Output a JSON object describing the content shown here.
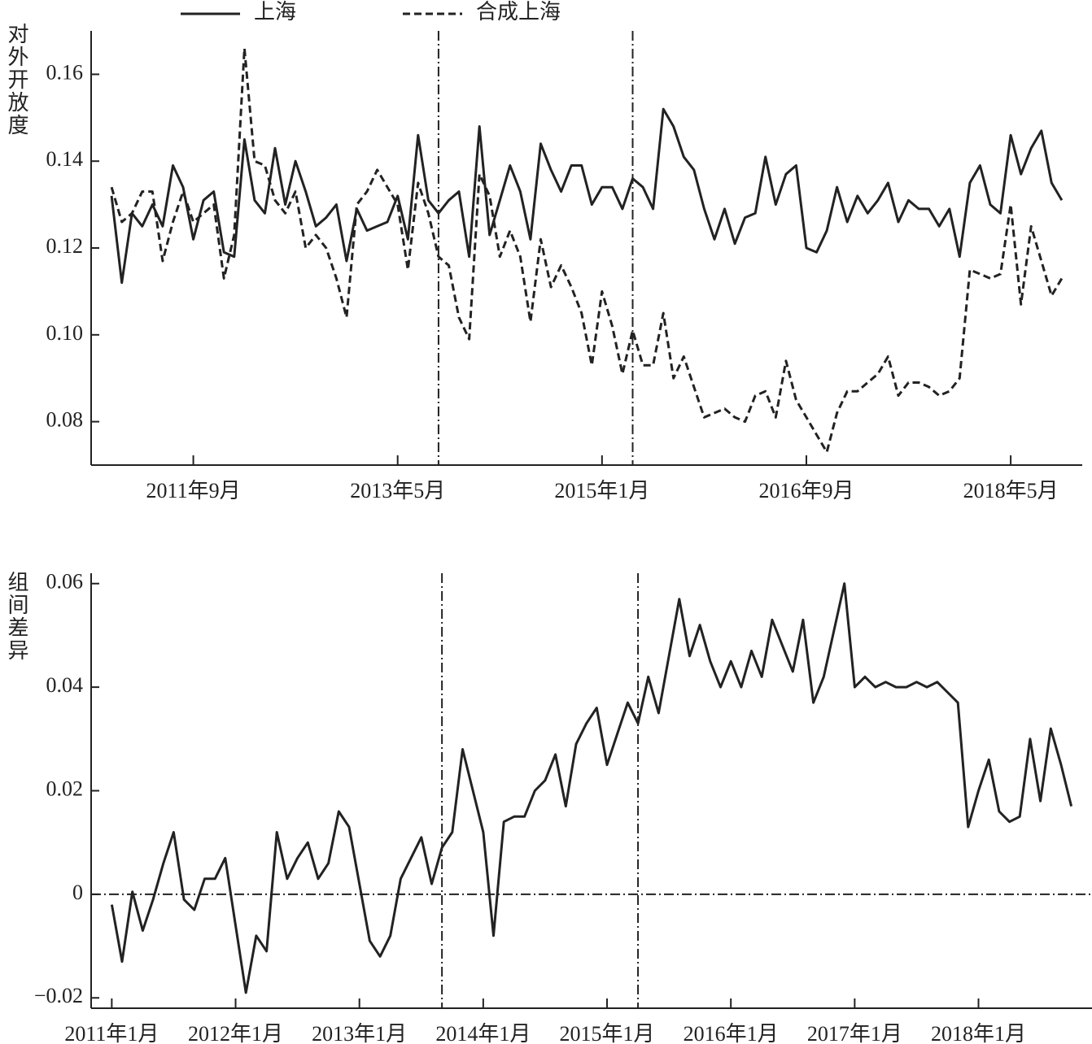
{
  "chart_data": [
    {
      "type": "line",
      "ylabel": "对外开放度",
      "legend": "top",
      "x": [
        "2011-01",
        "2011-02",
        "2011-03",
        "2011-04",
        "2011-05",
        "2011-06",
        "2011-07",
        "2011-08",
        "2011-09",
        "2011-10",
        "2011-11",
        "2011-12",
        "2012-01",
        "2012-02",
        "2012-03",
        "2012-04",
        "2012-05",
        "2012-06",
        "2012-07",
        "2012-08",
        "2012-09",
        "2012-10",
        "2012-11",
        "2012-12",
        "2013-01",
        "2013-02",
        "2013-03",
        "2013-04",
        "2013-05",
        "2013-06",
        "2013-07",
        "2013-08",
        "2013-09",
        "2013-10",
        "2013-11",
        "2013-12",
        "2014-01",
        "2014-02",
        "2014-03",
        "2014-04",
        "2014-05",
        "2014-06",
        "2014-07",
        "2014-08",
        "2014-09",
        "2014-10",
        "2014-11",
        "2014-12",
        "2015-01",
        "2015-02",
        "2015-03",
        "2015-04",
        "2015-05",
        "2015-06",
        "2015-07",
        "2015-08",
        "2015-09",
        "2015-10",
        "2015-11",
        "2015-12",
        "2016-01",
        "2016-02",
        "2016-03",
        "2016-04",
        "2016-05",
        "2016-06",
        "2016-07",
        "2016-08",
        "2016-09",
        "2016-10",
        "2016-11",
        "2016-12",
        "2017-01",
        "2017-02",
        "2017-03",
        "2017-04",
        "2017-05",
        "2017-06",
        "2017-07",
        "2017-08",
        "2017-09",
        "2017-10",
        "2017-11",
        "2017-12",
        "2018-01",
        "2018-02",
        "2018-03",
        "2018-04",
        "2018-05",
        "2018-06",
        "2018-07",
        "2018-08",
        "2018-09",
        "2018-10"
      ],
      "series": [
        {
          "name": "上海",
          "color": "#222222",
          "style": "solid",
          "values": [
            0.132,
            0.112,
            0.128,
            0.125,
            0.13,
            0.125,
            0.139,
            0.134,
            0.122,
            0.131,
            0.133,
            0.119,
            0.118,
            0.145,
            0.131,
            0.128,
            0.143,
            0.13,
            0.14,
            0.133,
            0.125,
            0.127,
            0.13,
            0.117,
            0.129,
            0.124,
            0.125,
            0.126,
            0.132,
            0.122,
            0.146,
            0.131,
            0.128,
            0.131,
            0.133,
            0.118,
            0.148,
            0.123,
            0.131,
            0.139,
            0.133,
            0.122,
            0.144,
            0.138,
            0.133,
            0.139,
            0.139,
            0.13,
            0.134,
            0.134,
            0.129,
            0.136,
            0.134,
            0.129,
            0.152,
            0.148,
            0.141,
            0.138,
            0.129,
            0.122,
            0.129,
            0.121,
            0.127,
            0.128,
            0.141,
            0.13,
            0.137,
            0.139,
            0.12,
            0.119,
            0.124,
            0.134,
            0.126,
            0.132,
            0.128,
            0.131,
            0.135,
            0.126,
            0.131,
            0.129,
            0.129,
            0.125,
            0.129,
            0.118,
            0.135,
            0.139,
            0.13,
            0.128,
            0.146,
            0.137,
            0.143,
            0.147,
            0.135,
            0.131
          ]
        },
        {
          "name": "合成上海",
          "color": "#222222",
          "style": "dashed",
          "values": [
            0.134,
            0.126,
            0.128,
            0.133,
            0.133,
            0.117,
            0.126,
            0.133,
            0.126,
            0.128,
            0.13,
            0.113,
            0.123,
            0.166,
            0.14,
            0.139,
            0.131,
            0.128,
            0.133,
            0.12,
            0.123,
            0.12,
            0.113,
            0.104,
            0.13,
            0.133,
            0.138,
            0.134,
            0.13,
            0.115,
            0.135,
            0.128,
            0.118,
            0.116,
            0.104,
            0.099,
            0.137,
            0.132,
            0.118,
            0.124,
            0.118,
            0.103,
            0.122,
            0.111,
            0.116,
            0.111,
            0.105,
            0.093,
            0.11,
            0.102,
            0.091,
            0.101,
            0.093,
            0.093,
            0.105,
            0.09,
            0.095,
            0.088,
            0.081,
            0.082,
            0.083,
            0.081,
            0.08,
            0.086,
            0.087,
            0.081,
            0.094,
            0.085,
            0.081,
            0.077,
            0.073,
            0.082,
            0.087,
            0.087,
            0.089,
            0.091,
            0.095,
            0.086,
            0.089,
            0.089,
            0.088,
            0.086,
            0.087,
            0.09,
            0.115,
            0.114,
            0.113,
            0.114,
            0.13,
            0.107,
            0.125,
            0.117,
            0.109,
            0.113
          ]
        }
      ],
      "xlim": [
        "2010-11",
        "2018-12"
      ],
      "xticks": [
        {
          "value": "2011-09",
          "label": "2011年9月"
        },
        {
          "value": "2013-05",
          "label": "2013年5月"
        },
        {
          "value": "2015-01",
          "label": "2015年1月"
        },
        {
          "value": "2016-09",
          "label": "2016年9月"
        },
        {
          "value": "2018-05",
          "label": "2018年5月"
        }
      ],
      "ylim": [
        0.07,
        0.17
      ],
      "yticks": [
        0.08,
        {
          "value": 0.1,
          "label": "0.10"
        },
        0.12,
        0.14,
        0.16
      ],
      "vlines": [
        "2013-09",
        "2015-04"
      ]
    },
    {
      "type": "line",
      "ylabel": "组间差异",
      "x": [
        "2011-01",
        "2011-02",
        "2011-03",
        "2011-04",
        "2011-05",
        "2011-06",
        "2011-07",
        "2011-08",
        "2011-09",
        "2011-10",
        "2011-11",
        "2011-12",
        "2012-01",
        "2012-02",
        "2012-03",
        "2012-04",
        "2012-05",
        "2012-06",
        "2012-07",
        "2012-08",
        "2012-09",
        "2012-10",
        "2012-11",
        "2012-12",
        "2013-01",
        "2013-02",
        "2013-03",
        "2013-04",
        "2013-05",
        "2013-06",
        "2013-07",
        "2013-08",
        "2013-09",
        "2013-10",
        "2013-11",
        "2013-12",
        "2014-01",
        "2014-02",
        "2014-03",
        "2014-04",
        "2014-05",
        "2014-06",
        "2014-07",
        "2014-08",
        "2014-09",
        "2014-10",
        "2014-11",
        "2014-12",
        "2015-01",
        "2015-02",
        "2015-03",
        "2015-04",
        "2015-05",
        "2015-06",
        "2015-07",
        "2015-08",
        "2015-09",
        "2015-10",
        "2015-11",
        "2015-12",
        "2016-01",
        "2016-02",
        "2016-03",
        "2016-04",
        "2016-05",
        "2016-06",
        "2016-07",
        "2016-08",
        "2016-09",
        "2016-10",
        "2016-11",
        "2016-12",
        "2017-01",
        "2017-02",
        "2017-03",
        "2017-04",
        "2017-05",
        "2017-06",
        "2017-07",
        "2017-08",
        "2017-09",
        "2017-10",
        "2017-11",
        "2017-12",
        "2018-01",
        "2018-02",
        "2018-03",
        "2018-04",
        "2018-05",
        "2018-06",
        "2018-07",
        "2018-08",
        "2018-09",
        "2018-10"
      ],
      "series": [
        {
          "color": "#222222",
          "style": "solid",
          "values": [
            -0.002,
            -0.013,
            0.0005,
            -0.007,
            -0.001,
            0.006,
            0.012,
            -0.001,
            -0.003,
            0.003,
            0.003,
            0.007,
            -0.006,
            -0.019,
            -0.008,
            -0.011,
            0.012,
            0.003,
            0.007,
            0.01,
            0.003,
            0.006,
            0.016,
            0.013,
            0.002,
            -0.009,
            -0.012,
            -0.008,
            0.003,
            0.007,
            0.011,
            0.002,
            0.009,
            0.012,
            0.028,
            0.02,
            0.012,
            -0.008,
            0.014,
            0.015,
            0.015,
            0.02,
            0.022,
            0.027,
            0.017,
            0.029,
            0.033,
            0.036,
            0.025,
            0.031,
            0.037,
            0.033,
            0.042,
            0.035,
            0.046,
            0.057,
            0.046,
            0.052,
            0.045,
            0.04,
            0.045,
            0.04,
            0.047,
            0.042,
            0.053,
            0.048,
            0.043,
            0.053,
            0.037,
            0.042,
            0.051,
            0.06,
            0.04,
            0.042,
            0.04,
            0.041,
            0.04,
            0.04,
            0.041,
            0.04,
            0.041,
            0.039,
            0.037,
            0.013,
            0.02,
            0.026,
            0.016,
            0.014,
            0.015,
            0.03,
            0.018,
            0.032,
            0.025,
            0.017
          ]
        }
      ],
      "xlim": [
        "2010-11",
        "2018-12"
      ],
      "xticks": [
        {
          "value": "2011-01",
          "label": "2011年1月"
        },
        {
          "value": "2012-01",
          "label": "2012年1月"
        },
        {
          "value": "2013-01",
          "label": "2013年1月"
        },
        {
          "value": "2014-01",
          "label": "2014年1月"
        },
        {
          "value": "2015-01",
          "label": "2015年1月"
        },
        {
          "value": "2016-01",
          "label": "2016年1月"
        },
        {
          "value": "2017-01",
          "label": "2017年1月"
        },
        {
          "value": "2018-01",
          "label": "2018年1月"
        }
      ],
      "ylim": [
        -0.022,
        0.062
      ],
      "yticks": [
        {
          "value": -0.02,
          "label": "−0.02"
        },
        0,
        0.02,
        0.04,
        0.06
      ],
      "vlines": [
        "2013-09",
        "2015-04"
      ],
      "hlines": [
        0
      ]
    }
  ]
}
